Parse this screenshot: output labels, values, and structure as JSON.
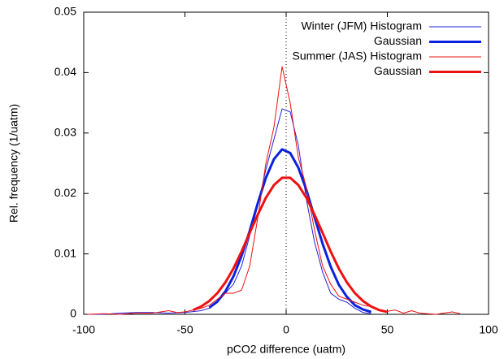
{
  "chart_data": {
    "type": "line",
    "xlabel": "pCO2 difference (uatm)",
    "ylabel": "Rel. frequency (1/uatm)",
    "xlim": [
      -100,
      100
    ],
    "xticks": [
      -100,
      -50,
      0,
      50,
      100
    ],
    "ylim": [
      0,
      0.05
    ],
    "yticks": [
      0,
      0.01,
      0.02,
      0.03,
      0.04,
      0.05
    ],
    "zero_line": true,
    "legend": "top-right",
    "series": [
      {
        "name": "Winter (JFM) Histogram",
        "color": "#2222dd",
        "width": 1,
        "x": [
          -98,
          -90,
          -82,
          -74,
          -66,
          -58,
          -50,
          -42,
          -38,
          -34,
          -30,
          -26,
          -22,
          -18,
          -14,
          -10,
          -6,
          -2,
          2,
          6,
          10,
          14,
          18,
          22,
          26,
          30,
          34,
          38,
          42
        ],
        "values": [
          0,
          0,
          0.0002,
          0.0003,
          0.0003,
          0.0002,
          0.0003,
          0.0006,
          0.001,
          0.002,
          0.0035,
          0.005,
          0.008,
          0.013,
          0.018,
          0.024,
          0.029,
          0.034,
          0.0335,
          0.028,
          0.019,
          0.012,
          0.007,
          0.0035,
          0.0025,
          0.002,
          0.001,
          0.0003,
          0.0001
        ]
      },
      {
        "name": "Gaussian",
        "color": "#0a22dd",
        "width": 3,
        "x": [
          -38,
          -34,
          -30,
          -26,
          -22,
          -18,
          -14,
          -10,
          -6,
          -2,
          2,
          6,
          10,
          14,
          18,
          22,
          26,
          30,
          34,
          38,
          42
        ],
        "values": [
          0.0011,
          0.0021,
          0.0038,
          0.0063,
          0.0097,
          0.0138,
          0.0184,
          0.0226,
          0.0257,
          0.0273,
          0.0267,
          0.0243,
          0.0206,
          0.0161,
          0.0117,
          0.0079,
          0.0049,
          0.0029,
          0.0015,
          0.0008,
          0.0004
        ]
      },
      {
        "name": "Summer (JAS) Histogram",
        "color": "#ee1111",
        "width": 1,
        "x": [
          -98,
          -90,
          -82,
          -74,
          -66,
          -58,
          -54,
          -50,
          -46,
          -42,
          -38,
          -34,
          -30,
          -26,
          -22,
          -18,
          -14,
          -10,
          -6,
          -2,
          2,
          6,
          10,
          14,
          18,
          22,
          26,
          30,
          34,
          38,
          42,
          46,
          50,
          54,
          58,
          62,
          66,
          70,
          74,
          78,
          82,
          86
        ],
        "values": [
          0,
          0.0001,
          0,
          0.0002,
          0.0002,
          0.0006,
          0.0003,
          0.0004,
          0.0007,
          0.001,
          0.0015,
          0.0025,
          0.0035,
          0.0035,
          0.004,
          0.008,
          0.016,
          0.025,
          0.031,
          0.041,
          0.035,
          0.026,
          0.021,
          0.014,
          0.008,
          0.005,
          0.003,
          0.0025,
          0.002,
          0.0015,
          0.0013,
          0.0008,
          0.0005,
          0.0007,
          0.0002,
          0.0006,
          0.0002,
          0.0001,
          0,
          0.0002,
          0.0004,
          0.0001
        ]
      },
      {
        "name": "Gaussian",
        "color": "#ee1111",
        "width": 3,
        "x": [
          -46,
          -42,
          -38,
          -34,
          -30,
          -26,
          -22,
          -18,
          -14,
          -10,
          -6,
          -2,
          2,
          6,
          10,
          14,
          18,
          22,
          26,
          30,
          34,
          38,
          42,
          46,
          50
        ],
        "values": [
          0.0007,
          0.0013,
          0.0022,
          0.0035,
          0.0053,
          0.0076,
          0.0104,
          0.0135,
          0.0165,
          0.0193,
          0.0214,
          0.0226,
          0.0226,
          0.0214,
          0.0193,
          0.0165,
          0.0135,
          0.0104,
          0.0076,
          0.0053,
          0.0035,
          0.0022,
          0.0013,
          0.0007,
          0.0004
        ]
      }
    ]
  }
}
